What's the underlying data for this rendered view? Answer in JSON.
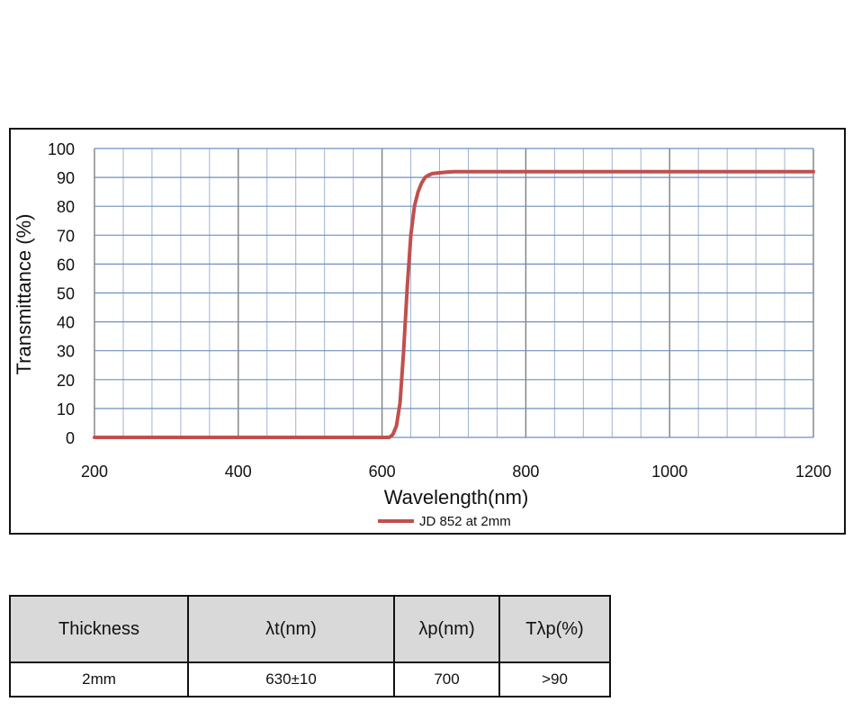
{
  "chart_data": {
    "type": "line",
    "xlabel": "Wavelength(nm)",
    "ylabel": "Transmittance (%)",
    "xlim": [
      200,
      1200
    ],
    "ylim": [
      0,
      100
    ],
    "xticks": [
      200,
      400,
      600,
      800,
      1000,
      1200
    ],
    "yticks": [
      0,
      10,
      20,
      30,
      40,
      50,
      60,
      70,
      80,
      90,
      100
    ],
    "grid": true,
    "legend": "bottom-center",
    "series": [
      {
        "name": "JD 852 at 2mm",
        "color": "#c0504d",
        "x": [
          200,
          400,
          600,
          610,
          615,
          620,
          625,
          630,
          635,
          640,
          645,
          650,
          655,
          660,
          665,
          670,
          680,
          690,
          700,
          800,
          1000,
          1200
        ],
        "y": [
          0,
          0,
          0,
          0,
          1,
          4,
          12,
          30,
          52,
          70,
          80,
          85,
          88,
          90,
          90.8,
          91.3,
          91.6,
          91.8,
          92,
          92,
          92,
          92
        ]
      }
    ]
  },
  "table": {
    "headers": [
      "Thickness",
      "λt(nm)",
      "λp(nm)",
      "Tλp(%)"
    ],
    "rows": [
      [
        "2mm",
        "630±10",
        "700",
        ">90"
      ]
    ]
  }
}
